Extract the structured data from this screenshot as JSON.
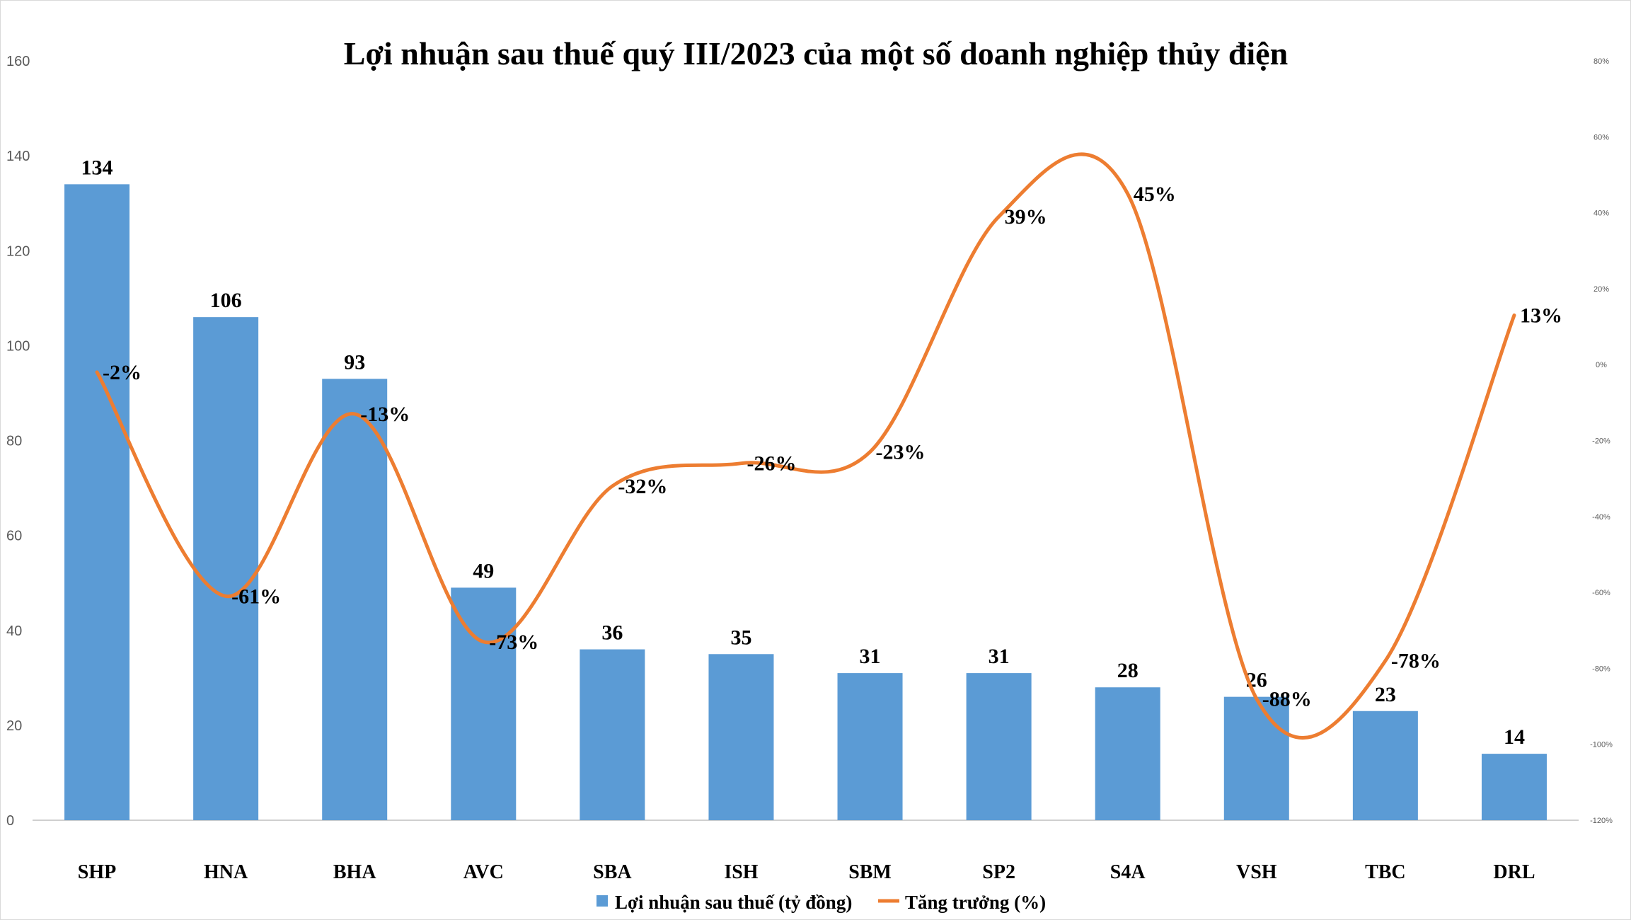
{
  "chart_data": {
    "type": "bar",
    "title": "Lợi nhuận sau thuế quý III/2023 của một số doanh nghiệp thủy điện",
    "categories": [
      "SHP",
      "HNA",
      "BHA",
      "AVC",
      "SBA",
      "ISH",
      "SBM",
      "SP2",
      "S4A",
      "VSH",
      "TBC",
      "DRL"
    ],
    "series": [
      {
        "name": "Lợi nhuận sau thuế (tỷ đồng)",
        "type": "bar",
        "axis": "left",
        "color": "#5b9bd5",
        "values": [
          134,
          106,
          93,
          49,
          36,
          35,
          31,
          31,
          28,
          26,
          23,
          14
        ],
        "labels": [
          "134",
          "106",
          "93",
          "49",
          "36",
          "35",
          "31",
          "31",
          "28",
          "26",
          "23",
          "14"
        ]
      },
      {
        "name": "Tăng trưởng (%)",
        "type": "line",
        "smooth": true,
        "axis": "right",
        "color": "#ed7d31",
        "values": [
          -2,
          -61,
          -13,
          -73,
          -32,
          -26,
          -23,
          39,
          45,
          -88,
          -78,
          13
        ],
        "labels": [
          "-2%",
          "-61%",
          "-13%",
          "-73%",
          "-32%",
          "-26%",
          "-23%",
          "39%",
          "45%",
          "-88%",
          "-78%",
          "13%"
        ]
      }
    ],
    "ylim": [
      0,
      160
    ],
    "yticks": [
      "0",
      "20",
      "40",
      "60",
      "80",
      "100",
      "120",
      "140",
      "160"
    ],
    "y2lim": [
      -120,
      80
    ],
    "y2ticks": [
      "-120%",
      "-100%",
      "-80%",
      "-60%",
      "-40%",
      "-20%",
      "0%",
      "20%",
      "40%",
      "60%",
      "80%"
    ],
    "grid": false,
    "legend_position": "bottom"
  }
}
